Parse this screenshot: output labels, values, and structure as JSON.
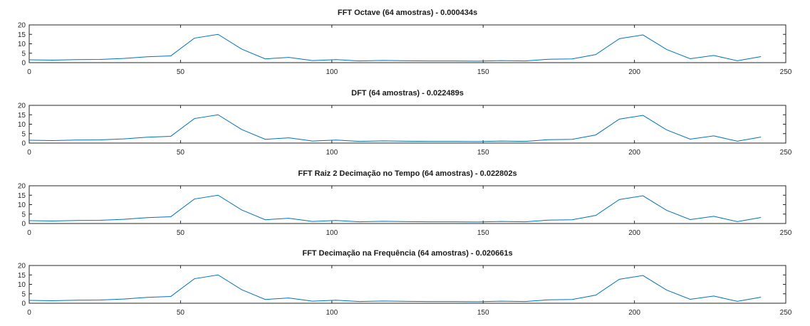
{
  "figure": {
    "background": "#ffffff",
    "axis_color": "#262626",
    "line_color": "#0072bd"
  },
  "chart_data": [
    {
      "type": "line",
      "title": "FFT Octave (64 amostras) - 0.000434s",
      "xlabel": "",
      "ylabel": "",
      "xlim": [
        0,
        250
      ],
      "ylim": [
        0,
        20
      ],
      "xticks": [
        0,
        50,
        100,
        150,
        200,
        250
      ],
      "yticks": [
        0,
        5,
        10,
        15,
        20
      ],
      "grid": false,
      "series": [
        {
          "color": "#0072bd",
          "x": [
            0,
            7.8,
            15.6,
            23.4,
            31.2,
            39,
            46.8,
            54.6,
            62.4,
            70.2,
            78,
            85.8,
            93.6,
            101.4,
            109.2,
            117,
            124.8,
            132.6,
            140.4,
            148.2,
            156,
            163.8,
            171.6,
            179.4,
            187.2,
            195,
            202.8,
            210.6,
            218.4,
            226.2,
            234,
            241.8
          ],
          "y": [
            1.5,
            1.3,
            1.6,
            1.7,
            2.2,
            3.1,
            3.6,
            13.0,
            15.0,
            7.2,
            2.0,
            2.8,
            1.1,
            1.6,
            0.9,
            1.2,
            1.0,
            0.9,
            0.9,
            0.8,
            1.1,
            0.9,
            1.8,
            2.0,
            4.3,
            12.7,
            14.7,
            7.0,
            2.1,
            3.8,
            1.0,
            3.2
          ]
        }
      ]
    },
    {
      "type": "line",
      "title": "DFT (64 amostras) - 0.022489s",
      "xlabel": "",
      "ylabel": "",
      "xlim": [
        0,
        250
      ],
      "ylim": [
        0,
        20
      ],
      "xticks": [
        0,
        50,
        100,
        150,
        200,
        250
      ],
      "yticks": [
        0,
        5,
        10,
        15,
        20
      ],
      "grid": false,
      "series": [
        {
          "color": "#0072bd",
          "x": [
            0,
            7.8,
            15.6,
            23.4,
            31.2,
            39,
            46.8,
            54.6,
            62.4,
            70.2,
            78,
            85.8,
            93.6,
            101.4,
            109.2,
            117,
            124.8,
            132.6,
            140.4,
            148.2,
            156,
            163.8,
            171.6,
            179.4,
            187.2,
            195,
            202.8,
            210.6,
            218.4,
            226.2,
            234,
            241.8
          ],
          "y": [
            1.5,
            1.3,
            1.6,
            1.7,
            2.2,
            3.1,
            3.6,
            13.0,
            15.0,
            7.2,
            2.0,
            2.8,
            1.1,
            1.6,
            0.9,
            1.2,
            1.0,
            0.9,
            0.9,
            0.8,
            1.1,
            0.9,
            1.8,
            2.0,
            4.3,
            12.7,
            14.7,
            7.0,
            2.1,
            3.8,
            1.0,
            3.2
          ]
        }
      ]
    },
    {
      "type": "line",
      "title": "FFT Raiz 2 Decimação no Tempo (64 amostras) - 0.022802s",
      "xlabel": "",
      "ylabel": "",
      "xlim": [
        0,
        250
      ],
      "ylim": [
        0,
        20
      ],
      "xticks": [
        0,
        50,
        100,
        150,
        200,
        250
      ],
      "yticks": [
        0,
        5,
        10,
        15,
        20
      ],
      "grid": false,
      "series": [
        {
          "color": "#0072bd",
          "x": [
            0,
            7.8,
            15.6,
            23.4,
            31.2,
            39,
            46.8,
            54.6,
            62.4,
            70.2,
            78,
            85.8,
            93.6,
            101.4,
            109.2,
            117,
            124.8,
            132.6,
            140.4,
            148.2,
            156,
            163.8,
            171.6,
            179.4,
            187.2,
            195,
            202.8,
            210.6,
            218.4,
            226.2,
            234,
            241.8
          ],
          "y": [
            1.5,
            1.3,
            1.6,
            1.7,
            2.2,
            3.1,
            3.6,
            13.0,
            15.0,
            7.2,
            2.0,
            2.8,
            1.1,
            1.6,
            0.9,
            1.2,
            1.0,
            0.9,
            0.9,
            0.8,
            1.1,
            0.9,
            1.8,
            2.0,
            4.3,
            12.7,
            14.7,
            7.0,
            2.1,
            3.8,
            1.0,
            3.2
          ]
        }
      ]
    },
    {
      "type": "line",
      "title": "FFT Decimação na Frequência (64 amostras) - 0.020661s",
      "xlabel": "",
      "ylabel": "",
      "xlim": [
        0,
        250
      ],
      "ylim": [
        0,
        20
      ],
      "xticks": [
        0,
        50,
        100,
        150,
        200,
        250
      ],
      "yticks": [
        0,
        5,
        10,
        15,
        20
      ],
      "grid": false,
      "series": [
        {
          "color": "#0072bd",
          "x": [
            0,
            7.8,
            15.6,
            23.4,
            31.2,
            39,
            46.8,
            54.6,
            62.4,
            70.2,
            78,
            85.8,
            93.6,
            101.4,
            109.2,
            117,
            124.8,
            132.6,
            140.4,
            148.2,
            156,
            163.8,
            171.6,
            179.4,
            187.2,
            195,
            202.8,
            210.6,
            218.4,
            226.2,
            234,
            241.8
          ],
          "y": [
            1.5,
            1.3,
            1.6,
            1.7,
            2.2,
            3.1,
            3.6,
            13.0,
            15.0,
            7.2,
            2.0,
            2.8,
            1.1,
            1.6,
            0.9,
            1.2,
            1.0,
            0.9,
            0.9,
            0.8,
            1.1,
            0.9,
            1.8,
            2.0,
            4.3,
            12.7,
            14.7,
            7.0,
            2.1,
            3.8,
            1.0,
            3.2
          ]
        }
      ]
    }
  ]
}
